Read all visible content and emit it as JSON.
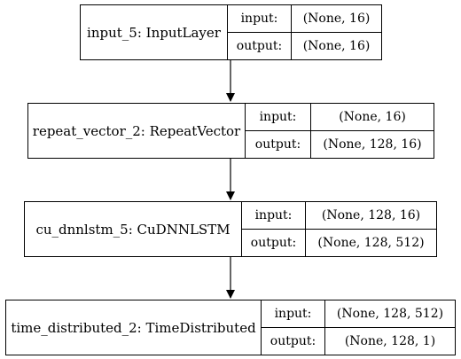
{
  "nodes": [
    {
      "name": "input_5: InputLayer",
      "input_label": "input:",
      "input_value": "(None, 16)",
      "output_label": "output:",
      "output_value": "(None, 16)"
    },
    {
      "name": "repeat_vector_2: RepeatVector",
      "input_label": "input:",
      "input_value": "(None, 16)",
      "output_label": "output:",
      "output_value": "(None, 128, 16)"
    },
    {
      "name": "cu_dnnlstm_5: CuDNNLSTM",
      "input_label": "input:",
      "input_value": "(None, 128, 16)",
      "output_label": "output:",
      "output_value": "(None, 128, 512)"
    },
    {
      "name": "time_distributed_2: TimeDistributed",
      "input_label": "input:",
      "input_value": "(None, 128, 512)",
      "output_label": "output:",
      "output_value": "(None, 128, 1)"
    }
  ]
}
